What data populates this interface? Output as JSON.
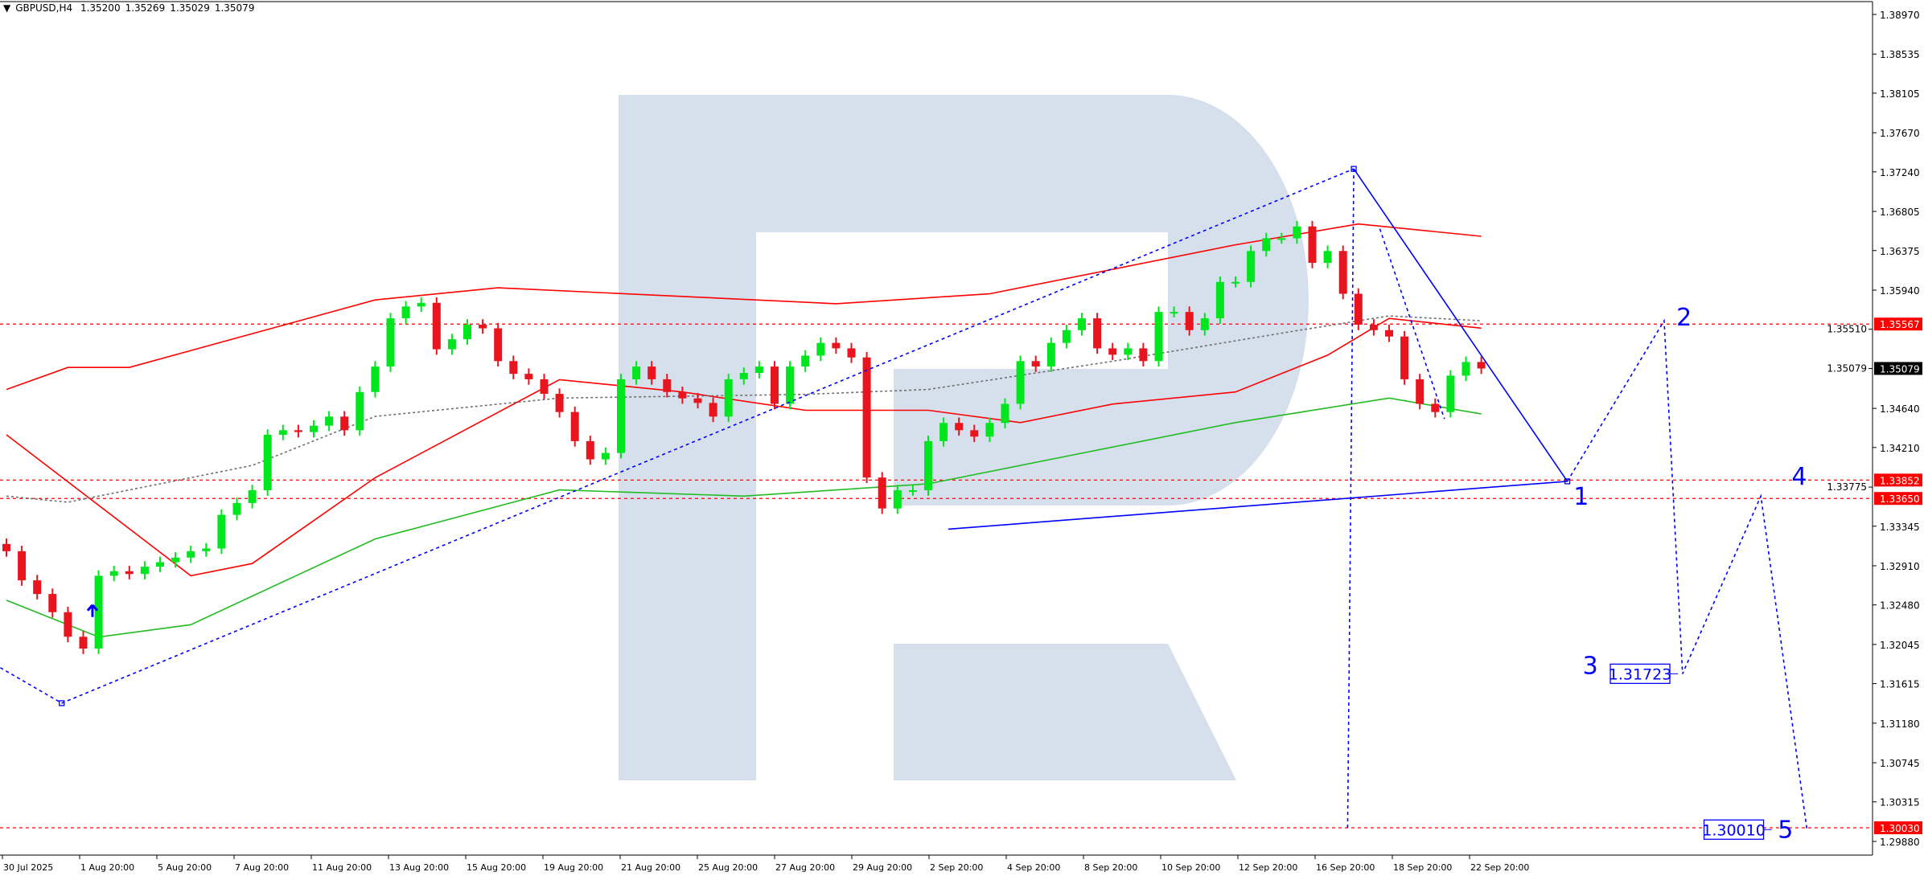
{
  "header": {
    "symbol": "GBPUSD,H4",
    "open": "1.35200",
    "high": "1.35269",
    "low": "1.35029",
    "close": "1.35079"
  },
  "colors": {
    "bull": "#00e61e",
    "bear": "#e8141e",
    "envelope": "#ff0000",
    "ma_green": "#22bb22",
    "ma_gray": "#707070",
    "wave": "#0000ff",
    "level": "#ff0000",
    "watermark": "#d5e0ec"
  },
  "chart_data": {
    "type": "candlestick",
    "symbol": "GBPUSD",
    "timeframe": "H4",
    "ylim": [
      1.2975,
      1.3912
    ],
    "y_ticks": [
      "1.38970",
      "1.38535",
      "1.38105",
      "1.37670",
      "1.37240",
      "1.36805",
      "1.36375",
      "1.35940",
      "1.35510",
      "1.35079",
      "1.34640",
      "1.34210",
      "1.33775",
      "1.33345",
      "1.32910",
      "1.32480",
      "1.32045",
      "1.31615",
      "1.31180",
      "1.30745",
      "1.30315",
      "1.29880"
    ],
    "x_ticks": [
      "30 Jul 2025",
      "1 Aug 20:00",
      "5 Aug 20:00",
      "7 Aug 20:00",
      "11 Aug 20:00",
      "13 Aug 20:00",
      "15 Aug 20:00",
      "19 Aug 20:00",
      "21 Aug 20:00",
      "25 Aug 20:00",
      "27 Aug 20:00",
      "29 Aug 20:00",
      "2 Sep 20:00",
      "4 Sep 20:00",
      "8 Sep 20:00",
      "10 Sep 20:00",
      "12 Sep 20:00",
      "16 Sep 20:00",
      "18 Sep 20:00",
      "22 Sep 20:00"
    ],
    "closes": [
      1.3307,
      1.3275,
      1.326,
      1.324,
      1.3213,
      1.32,
      1.328,
      1.3285,
      1.3282,
      1.329,
      1.3295,
      1.33,
      1.3307,
      1.331,
      1.3347,
      1.336,
      1.3374,
      1.3435,
      1.344,
      1.3438,
      1.3445,
      1.3455,
      1.344,
      1.3482,
      1.351,
      1.3563,
      1.3576,
      1.358,
      1.3529,
      1.354,
      1.3556,
      1.3552,
      1.3516,
      1.3502,
      1.3496,
      1.348,
      1.346,
      1.3428,
      1.3408,
      1.3415,
      1.3496,
      1.351,
      1.3496,
      1.3482,
      1.3475,
      1.347,
      1.3455,
      1.3496,
      1.3503,
      1.351,
      1.3469,
      1.351,
      1.3522,
      1.3536,
      1.353,
      1.352,
      1.3388,
      1.3354,
      1.3374,
      1.3374,
      1.3428,
      1.3448,
      1.344,
      1.3433,
      1.3448,
      1.3469,
      1.3516,
      1.351,
      1.3536,
      1.355,
      1.3563,
      1.353,
      1.3523,
      1.353,
      1.3516,
      1.357,
      1.357,
      1.355,
      1.3563,
      1.3603,
      1.3603,
      1.3637,
      1.3651,
      1.3651,
      1.3664,
      1.3624,
      1.3637,
      1.359,
      1.3556,
      1.355,
      1.3543,
      1.3496,
      1.3469,
      1.346,
      1.35,
      1.3515,
      1.35079
    ],
    "indicators": [
      {
        "style": "envelope-upper",
        "points": [
          [
            0,
            1.34848
          ],
          [
            4,
            1.3509
          ],
          [
            8,
            1.3509
          ],
          [
            24,
            1.35832
          ],
          [
            32,
            1.35966
          ],
          [
            54,
            1.35791
          ],
          [
            64,
            1.35899
          ],
          [
            80,
            1.36438
          ],
          [
            88,
            1.36667
          ],
          [
            96,
            1.36532
          ]
        ]
      },
      {
        "style": "envelope-lower",
        "points": [
          [
            0,
            1.3435
          ],
          [
            12,
            1.328
          ],
          [
            16,
            1.32935
          ],
          [
            24,
            1.33878
          ],
          [
            36,
            1.34956
          ],
          [
            44,
            1.34821
          ],
          [
            52,
            1.34619
          ],
          [
            60,
            1.34619
          ],
          [
            66,
            1.34484
          ],
          [
            72,
            1.34687
          ],
          [
            80,
            1.34821
          ],
          [
            86,
            1.35225
          ],
          [
            90,
            1.35629
          ],
          [
            96,
            1.35522
          ]
        ]
      },
      {
        "style": "ma-green",
        "points": [
          [
            0,
            1.32531
          ],
          [
            6,
            1.32127
          ],
          [
            12,
            1.32262
          ],
          [
            24,
            1.33205
          ],
          [
            36,
            1.33744
          ],
          [
            48,
            1.33676
          ],
          [
            60,
            1.33811
          ],
          [
            68,
            1.3408
          ],
          [
            80,
            1.34484
          ],
          [
            90,
            1.34754
          ],
          [
            96,
            1.34579
          ]
        ]
      },
      {
        "style": "ma-gray-dotted",
        "points": [
          [
            0,
            1.33676
          ],
          [
            4,
            1.33609
          ],
          [
            16,
            1.34013
          ],
          [
            24,
            1.34552
          ],
          [
            36,
            1.34754
          ],
          [
            52,
            1.34794
          ],
          [
            60,
            1.34848
          ],
          [
            72,
            1.35158
          ],
          [
            84,
            1.35495
          ],
          [
            90,
            1.35656
          ],
          [
            96,
            1.35603
          ]
        ]
      }
    ],
    "levels": [
      {
        "price": "1.35567",
        "style": "red"
      },
      {
        "price": "1.33852",
        "style": "red"
      },
      {
        "price": "1.33650",
        "style": "red"
      },
      {
        "price": "1.30030",
        "style": "red"
      },
      {
        "price": "1.35079",
        "style": "black"
      }
    ],
    "wave_lines": [
      {
        "style": "dotted",
        "points": [
          [
            -0.4,
            1.3179
          ],
          [
            3.6,
            1.314
          ],
          [
            87.7,
            1.37273
          ]
        ]
      },
      {
        "style": "dotted",
        "points": [
          [
            87.7,
            1.37273
          ],
          [
            87.3,
            1.30013
          ]
        ]
      },
      {
        "style": "dotted",
        "points": [
          [
            89.4,
            1.36613
          ],
          [
            93.6,
            1.34525
          ]
        ]
      },
      {
        "style": "solid",
        "points": [
          [
            87.7,
            1.37273
          ],
          [
            101.6,
            1.33838
          ]
        ]
      },
      {
        "style": "solid",
        "points": [
          [
            61.3,
            1.33313
          ],
          [
            101.6,
            1.33838
          ]
        ]
      },
      {
        "style": "dotted",
        "points": [
          [
            101.6,
            1.33838
          ],
          [
            107.9,
            1.35603
          ],
          [
            109.1,
            1.31723
          ],
          [
            114.2,
            1.33676
          ],
          [
            117.2,
            1.3001
          ]
        ]
      }
    ],
    "wave_labels": [
      {
        "text": "1",
        "at": [
          102.0,
          1.3358
        ]
      },
      {
        "text": "2",
        "at": [
          108.7,
          1.3555
        ]
      },
      {
        "text": "3",
        "at": [
          102.6,
          1.3172
        ]
      },
      {
        "text": "4",
        "at": [
          116.2,
          1.338
        ]
      },
      {
        "text": "5",
        "at": [
          115.3,
          1.2992
        ]
      }
    ],
    "price_boxes": [
      {
        "text": "1.31723",
        "at": [
          104.4,
          1.31723
        ]
      },
      {
        "text": "1.30010",
        "at": [
          110.5,
          1.3001
        ]
      }
    ],
    "arrow": {
      "icon": "arrow-up-icon",
      "at": [
        5.6,
        1.324
      ]
    }
  }
}
